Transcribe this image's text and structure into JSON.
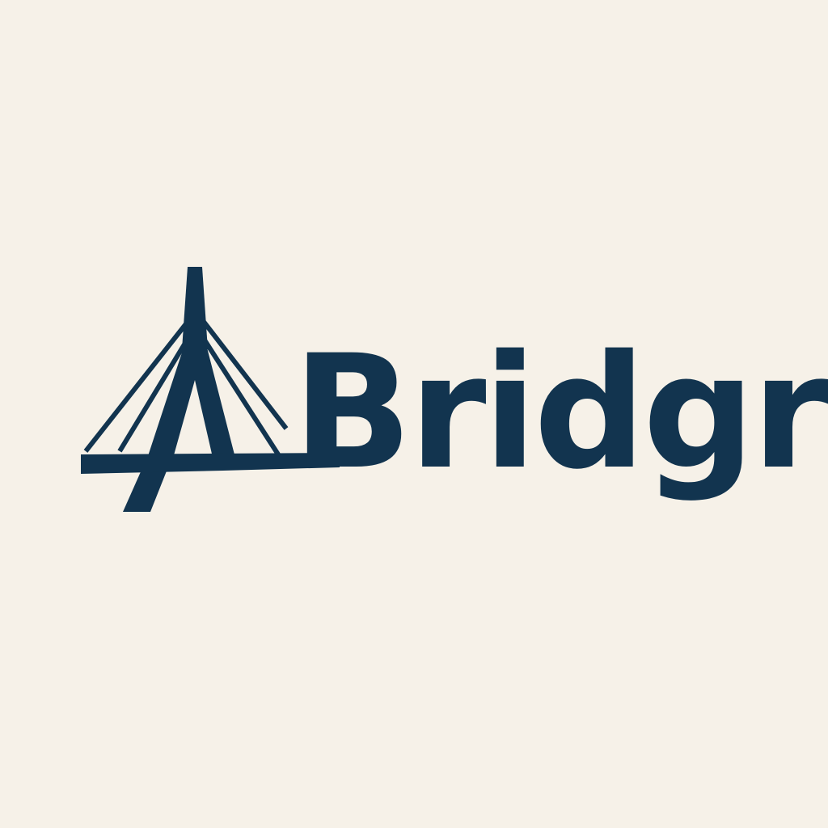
{
  "logo": {
    "wordmark": "Bridgr",
    "icon": "cable-stayed-bridge-icon",
    "colors": {
      "brand": "#12344f",
      "background": "#f6f1e8"
    }
  }
}
